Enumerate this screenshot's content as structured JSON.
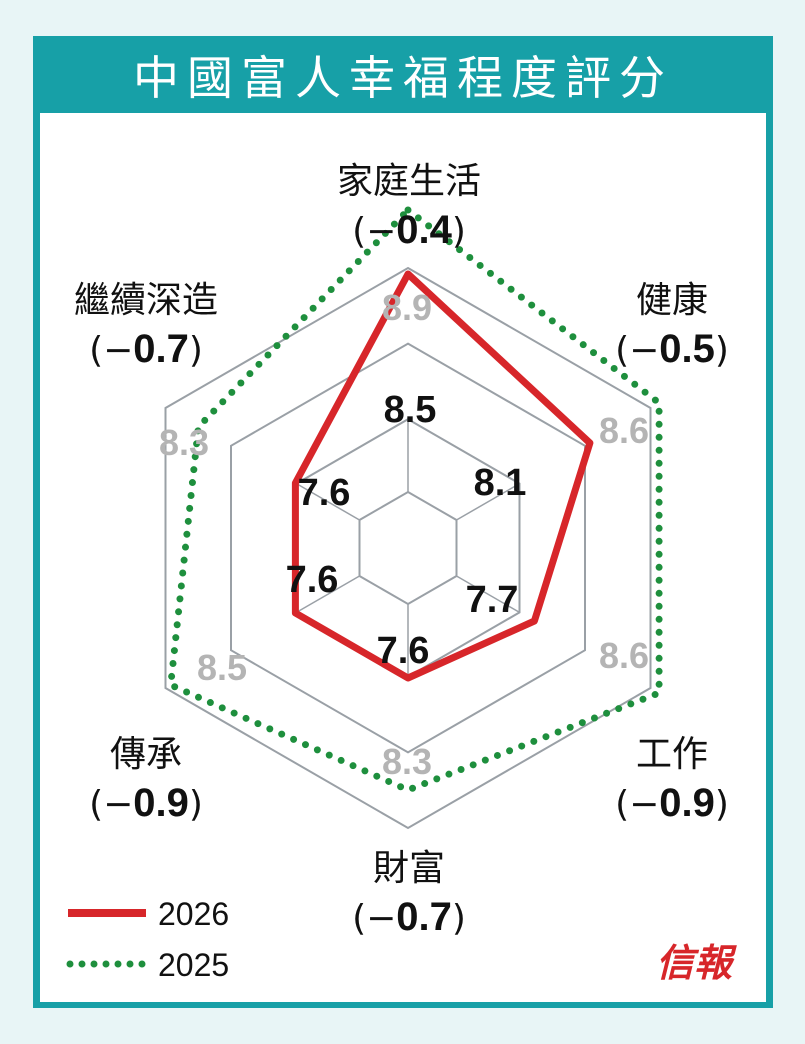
{
  "title": "中國富人幸福程度評分",
  "brand": "信報",
  "colors": {
    "frame": "#17a0a7",
    "series_2026": "#d7262a",
    "series_2025": "#1e8f3d",
    "grid": "#9aa0a6",
    "value_2025": "#b4b4b4",
    "value_2026": "#111111"
  },
  "chart_data": {
    "type": "radar",
    "axes": [
      {
        "name": "家庭生活",
        "change_prefix": "(−",
        "change_value": "0.4",
        "change_suffix": ")"
      },
      {
        "name": "健康",
        "change_prefix": "(−",
        "change_value": "0.5",
        "change_suffix": ")"
      },
      {
        "name": "工作",
        "change_prefix": "(−",
        "change_value": "0.9",
        "change_suffix": ")"
      },
      {
        "name": "財富",
        "change_prefix": "(−",
        "change_value": "0.7",
        "change_suffix": ")"
      },
      {
        "name": "傳承",
        "change_prefix": "(−",
        "change_value": "0.9",
        "change_suffix": ")"
      },
      {
        "name": "繼續深造",
        "change_prefix": "(−",
        "change_value": "0.7",
        "change_suffix": ")"
      }
    ],
    "series": [
      {
        "name": "2026",
        "values": [
          8.5,
          8.1,
          7.7,
          7.6,
          7.6,
          7.6
        ],
        "style": "solid"
      },
      {
        "name": "2025",
        "values": [
          8.9,
          8.6,
          8.6,
          8.3,
          8.5,
          8.3
        ],
        "style": "dotted"
      }
    ],
    "value_labels_2026": [
      "8.5",
      "8.1",
      "7.7",
      "7.6",
      "7.6",
      "7.6"
    ],
    "value_labels_2025": [
      "8.9",
      "8.6",
      "8.6",
      "8.3",
      "8.5",
      "8.3"
    ],
    "grid_levels": 4,
    "legend_position": "bottom-left"
  }
}
